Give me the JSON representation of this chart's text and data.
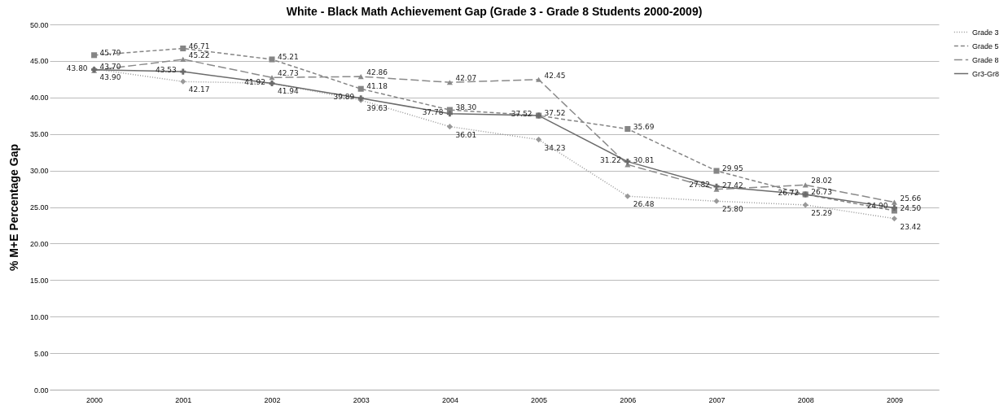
{
  "chart_data": {
    "type": "line",
    "title": "White - Black Math Achievement Gap (Grade 3 - Grade 8 Students 2000-2009)",
    "ylabel": "% M+E Percentage Gap",
    "categories": [
      "2000",
      "2001",
      "2002",
      "2003",
      "2004",
      "2005",
      "2006",
      "2007",
      "2008",
      "2009"
    ],
    "ylim": [
      0,
      50
    ],
    "yticks": [
      {
        "value": 0,
        "label": "0.00"
      },
      {
        "value": 5,
        "label": "5.00"
      },
      {
        "value": 10,
        "label": "10.00"
      },
      {
        "value": 15,
        "label": "15.00"
      },
      {
        "value": 20,
        "label": "20.00"
      },
      {
        "value": 25,
        "label": "25.00"
      },
      {
        "value": 30,
        "label": "30.00"
      },
      {
        "value": 35,
        "label": "35.00"
      },
      {
        "value": 40,
        "label": "40.00"
      },
      {
        "value": 45,
        "label": "45.00"
      },
      {
        "value": 50,
        "label": "50.00"
      }
    ],
    "grid": "y",
    "legend": "right",
    "series": [
      {
        "name": "Grade 3",
        "color": "#999999",
        "marker": "diamond",
        "line_style": "dotted",
        "values": [
          43.9,
          42.17,
          41.94,
          39.63,
          36.01,
          34.23,
          26.48,
          25.8,
          25.29,
          23.42
        ],
        "value_labels": [
          "43.90",
          "42.17",
          "41.94",
          "39.63",
          "36.01",
          "34.23",
          "26.48",
          "25.80",
          "25.29",
          "23.42"
        ]
      },
      {
        "name": "Grade 5",
        "color": "#858585",
        "marker": "square",
        "line_style": "dashed",
        "values": [
          45.79,
          46.71,
          45.21,
          41.18,
          38.3,
          37.52,
          35.69,
          29.95,
          26.73,
          24.5
        ],
        "value_labels": [
          "45.79",
          "46.71",
          "45.21",
          "41.18",
          "38.30",
          "37.52",
          "35.69",
          "29.95",
          "26.73",
          "24.50"
        ]
      },
      {
        "name": "Grade 8",
        "color": "#8a8a8a",
        "marker": "triangle",
        "line_style": "longdash",
        "values": [
          43.7,
          45.22,
          42.73,
          42.86,
          42.07,
          42.45,
          30.81,
          27.42,
          28.02,
          25.66
        ],
        "value_labels": [
          "43.70",
          "45.22",
          "42.73",
          "42.86",
          "42.07",
          "42.45",
          "30.81",
          "27.42",
          "28.02",
          "25.66"
        ]
      },
      {
        "name": "Gr3-Gr8",
        "color": "#6b6b6b",
        "marker": "cross",
        "line_style": "solid",
        "values": [
          43.8,
          43.53,
          41.92,
          39.89,
          37.78,
          37.52,
          31.22,
          27.82,
          26.72,
          24.9
        ],
        "value_labels": [
          "43.80",
          "43.53",
          "41.92",
          "39.89",
          "37.78",
          "37.52",
          "31.22",
          "27.82",
          "26.72",
          "24.90"
        ]
      }
    ]
  }
}
